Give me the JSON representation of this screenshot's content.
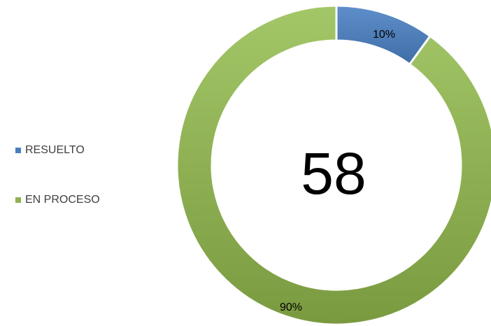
{
  "chart_data": {
    "type": "pie",
    "style": "donut",
    "center_text": "58",
    "categories": [
      "RESUELTO",
      "EN PROCESO"
    ],
    "values": [
      10,
      90
    ],
    "value_labels": [
      "10%",
      "90%"
    ],
    "colors": [
      "#4a7ebb",
      "#8fb153"
    ],
    "legend_position": "left",
    "title": ""
  }
}
